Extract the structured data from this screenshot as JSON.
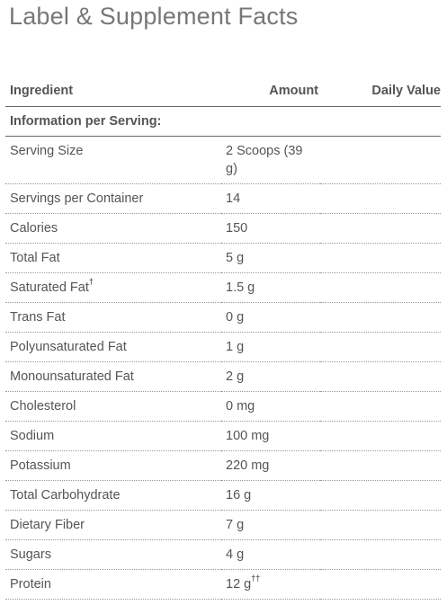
{
  "title": "Label & Supplement Facts",
  "table": {
    "headers": {
      "ingredient": "Ingredient",
      "amount": "Amount",
      "daily_value": "Daily Value"
    },
    "section_label": "Information per Serving:",
    "rows": [
      {
        "ingredient": "Serving Size",
        "amount": "2 Scoops (39 g)",
        "ingredient_mark": "",
        "amount_mark": "",
        "daily_value": ""
      },
      {
        "ingredient": "Servings per Container",
        "amount": "14",
        "ingredient_mark": "",
        "amount_mark": "",
        "daily_value": ""
      },
      {
        "ingredient": "Calories",
        "amount": "150",
        "ingredient_mark": "",
        "amount_mark": "",
        "daily_value": ""
      },
      {
        "ingredient": "Total Fat",
        "amount": "5 g",
        "ingredient_mark": "",
        "amount_mark": "",
        "daily_value": ""
      },
      {
        "ingredient": "Saturated Fat",
        "amount": "1.5 g",
        "ingredient_mark": "†",
        "amount_mark": "",
        "daily_value": ""
      },
      {
        "ingredient": "Trans Fat",
        "amount": "0 g",
        "ingredient_mark": "",
        "amount_mark": "",
        "daily_value": ""
      },
      {
        "ingredient": "Polyunsaturated Fat",
        "amount": "1 g",
        "ingredient_mark": "",
        "amount_mark": "",
        "daily_value": ""
      },
      {
        "ingredient": "Monounsaturated Fat",
        "amount": "2 g",
        "ingredient_mark": "",
        "amount_mark": "",
        "daily_value": ""
      },
      {
        "ingredient": "Cholesterol",
        "amount": "0 mg",
        "ingredient_mark": "",
        "amount_mark": "",
        "daily_value": ""
      },
      {
        "ingredient": "Sodium",
        "amount": "100 mg",
        "ingredient_mark": "",
        "amount_mark": "",
        "daily_value": ""
      },
      {
        "ingredient": "Potassium",
        "amount": "220 mg",
        "ingredient_mark": "",
        "amount_mark": "",
        "daily_value": ""
      },
      {
        "ingredient": "Total Carbohydrate",
        "amount": "16 g",
        "ingredient_mark": "",
        "amount_mark": "",
        "daily_value": ""
      },
      {
        "ingredient": "Dietary Fiber",
        "amount": "7 g",
        "ingredient_mark": "",
        "amount_mark": "",
        "daily_value": ""
      },
      {
        "ingredient": "Sugars",
        "amount": "4 g",
        "ingredient_mark": "",
        "amount_mark": "",
        "daily_value": ""
      },
      {
        "ingredient": "Protein",
        "amount": "12 g",
        "ingredient_mark": "",
        "amount_mark": "††",
        "daily_value": ""
      }
    ]
  }
}
